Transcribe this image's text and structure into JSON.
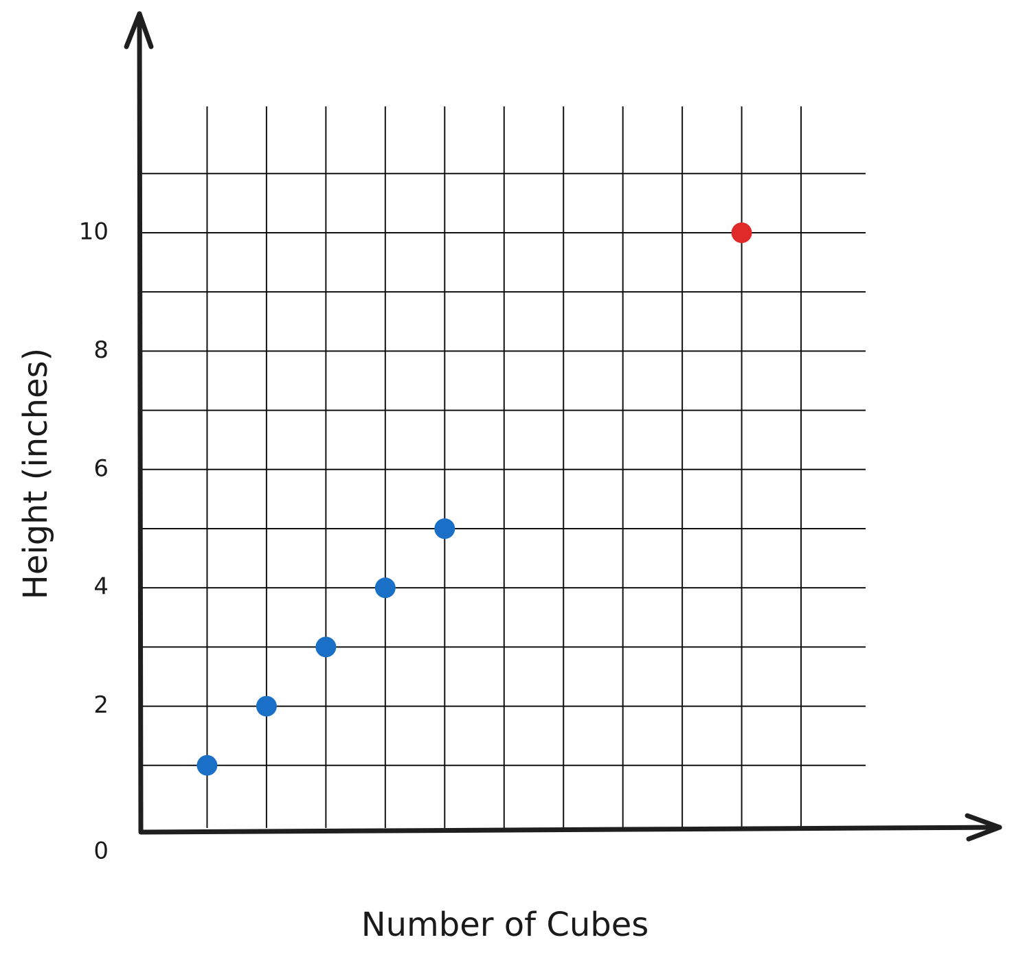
{
  "chart_data": {
    "type": "scatter",
    "x_label": "Number of Cubes",
    "y_label": "Height (inches)",
    "series": [
      {
        "color": "#1a6fc6",
        "x": [
          1,
          2,
          3,
          4,
          5
        ],
        "values": [
          1,
          2,
          3,
          4,
          5
        ]
      },
      {
        "color": "#e02a2a",
        "x": [
          10
        ],
        "values": [
          10
        ]
      }
    ],
    "xlim": [
      0,
      14.4
    ],
    "ylim": [
      0,
      13.7
    ],
    "yticks": [
      0,
      2,
      4,
      6,
      8,
      10
    ],
    "grid": true
  }
}
